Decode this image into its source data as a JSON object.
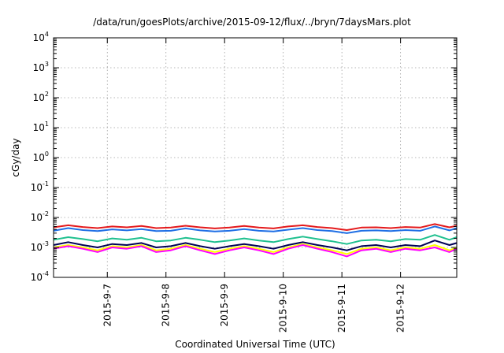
{
  "chart_data": {
    "type": "line",
    "title": "/data/run/goesPlots/archive/2015-09-12/flux/../bryn/7daysMars.plot",
    "xlabel": "Coordinated Universal Time (UTC)",
    "ylabel": "cGy/day",
    "yscale": "log",
    "ylim": [
      0.0001,
      10000
    ],
    "xlim": [
      "2015-09-06T02:00",
      "2015-09-12T23:00"
    ],
    "grid": true,
    "x_ticks": [
      {
        "label": "2015-9-7",
        "x": "2015-09-07T00:00"
      },
      {
        "label": "2015-9-8",
        "x": "2015-09-08T00:00"
      },
      {
        "label": "2015-9-9",
        "x": "2015-09-09T00:00"
      },
      {
        "label": "2015-9-10",
        "x": "2015-09-10T00:00"
      },
      {
        "label": "2015-9-11",
        "x": "2015-09-11T00:00"
      },
      {
        "label": "2015-9-12",
        "x": "2015-09-12T00:00"
      }
    ],
    "y_ticks": [
      {
        "base": "10",
        "exp": "4",
        "value": 10000
      },
      {
        "base": "10",
        "exp": "3",
        "value": 1000
      },
      {
        "base": "10",
        "exp": "2",
        "value": 100
      },
      {
        "base": "10",
        "exp": "1",
        "value": 10
      },
      {
        "base": "10",
        "exp": "0",
        "value": 1
      },
      {
        "base": "10",
        "exp": "-1",
        "value": 0.1
      },
      {
        "base": "10",
        "exp": "-2",
        "value": 0.01
      },
      {
        "base": "10",
        "exp": "-3",
        "value": 0.001
      },
      {
        "base": "10",
        "exp": "-4",
        "value": 0.0001
      }
    ],
    "x": [
      "2015-09-06T02:00",
      "2015-09-06T08:00",
      "2015-09-06T14:00",
      "2015-09-06T20:00",
      "2015-09-07T02:00",
      "2015-09-07T08:00",
      "2015-09-07T14:00",
      "2015-09-07T20:00",
      "2015-09-08T02:00",
      "2015-09-08T08:00",
      "2015-09-08T14:00",
      "2015-09-08T20:00",
      "2015-09-09T02:00",
      "2015-09-09T08:00",
      "2015-09-09T14:00",
      "2015-09-09T20:00",
      "2015-09-10T02:00",
      "2015-09-10T08:00",
      "2015-09-10T14:00",
      "2015-09-10T20:00",
      "2015-09-11T02:00",
      "2015-09-11T08:00",
      "2015-09-11T14:00",
      "2015-09-11T20:00",
      "2015-09-12T02:00",
      "2015-09-12T08:00",
      "2015-09-12T14:00",
      "2015-09-12T20:00",
      "2015-09-12T23:00"
    ],
    "series": [
      {
        "color": "#e41a1c",
        "values": [
          0.0047,
          0.0055,
          0.0048,
          0.0044,
          0.005,
          0.0047,
          0.0052,
          0.0044,
          0.0046,
          0.0053,
          0.0047,
          0.0043,
          0.0046,
          0.0052,
          0.0046,
          0.0043,
          0.005,
          0.0055,
          0.0048,
          0.0044,
          0.0038,
          0.0046,
          0.0047,
          0.0044,
          0.0048,
          0.0046,
          0.006,
          0.0047,
          0.0053
        ]
      },
      {
        "color": "#1f6fe5",
        "values": [
          0.0036,
          0.0044,
          0.0038,
          0.0035,
          0.004,
          0.0037,
          0.0041,
          0.0035,
          0.0036,
          0.0043,
          0.0037,
          0.0034,
          0.0036,
          0.0041,
          0.0036,
          0.0034,
          0.0039,
          0.0044,
          0.0038,
          0.0035,
          0.003,
          0.0036,
          0.0037,
          0.0035,
          0.0038,
          0.0036,
          0.005,
          0.0037,
          0.0044
        ]
      },
      {
        "color": "#1fc08f",
        "values": [
          0.0018,
          0.0022,
          0.0019,
          0.0016,
          0.002,
          0.0018,
          0.0021,
          0.0016,
          0.0017,
          0.0021,
          0.0018,
          0.0015,
          0.0017,
          0.002,
          0.0017,
          0.0015,
          0.0019,
          0.0023,
          0.0019,
          0.0016,
          0.0013,
          0.0017,
          0.0018,
          0.0016,
          0.0019,
          0.0018,
          0.0026,
          0.0018,
          0.0022
        ]
      },
      {
        "color": "#000055",
        "values": [
          0.0012,
          0.0015,
          0.0012,
          0.001,
          0.0013,
          0.0012,
          0.0014,
          0.001,
          0.0011,
          0.0014,
          0.0011,
          0.0009,
          0.0011,
          0.0013,
          0.0011,
          0.0009,
          0.0012,
          0.0015,
          0.0012,
          0.001,
          0.0008,
          0.0011,
          0.0012,
          0.001,
          0.0012,
          0.0011,
          0.0017,
          0.0012,
          0.0014
        ]
      },
      {
        "color": "#ffff00",
        "values": [
          0.001,
          0.0012,
          0.001,
          0.0008,
          0.0011,
          0.001,
          0.0012,
          0.0008,
          0.0009,
          0.0012,
          0.0009,
          0.0007,
          0.0009,
          0.0011,
          0.0009,
          0.0007,
          0.001,
          0.0013,
          0.001,
          0.0008,
          0.0006,
          0.0009,
          0.001,
          0.0008,
          0.001,
          0.0009,
          0.0012,
          0.0008,
          0.001
        ]
      },
      {
        "color": "#ff00ff",
        "values": [
          0.0009,
          0.0011,
          0.0009,
          0.0007,
          0.001,
          0.0009,
          0.0011,
          0.0007,
          0.0008,
          0.0011,
          0.0008,
          0.0006,
          0.0008,
          0.001,
          0.0008,
          0.0006,
          0.0009,
          0.0012,
          0.0009,
          0.0007,
          0.0005,
          0.0008,
          0.0009,
          0.0007,
          0.0009,
          0.0008,
          0.001,
          0.0007,
          0.0009
        ]
      }
    ]
  }
}
